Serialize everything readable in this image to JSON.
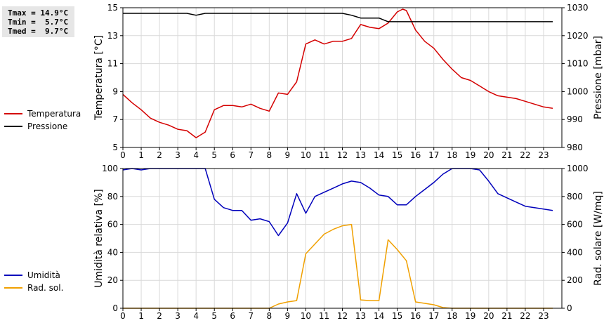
{
  "stats": {
    "tmax": "Tmax = 14.9°C",
    "tmin": "Tmin =  5.7°C",
    "tmed": "Tmed =  9.7°C"
  },
  "legends": {
    "top": [
      {
        "label": "Temperatura",
        "color": "#d40000"
      },
      {
        "label": "Pressione",
        "color": "#000000"
      }
    ],
    "bottom": [
      {
        "label": "Umidità",
        "color": "#0000bb"
      },
      {
        "label": "Rad. sol.",
        "color": "#f0a000"
      }
    ]
  },
  "chart_data": [
    {
      "type": "line",
      "x_range": [
        0,
        24
      ],
      "x_ticks": [
        "0",
        "1",
        "2",
        "3",
        "4",
        "5",
        "6",
        "7",
        "8",
        "9",
        "10",
        "11",
        "12",
        "13",
        "14",
        "15",
        "16",
        "17",
        "18",
        "19",
        "20",
        "21",
        "22",
        "23"
      ],
      "ylabel": "Temperatura [°C]",
      "ylim": [
        5,
        15
      ],
      "y_ticks": [
        "5",
        "7",
        "9",
        "11",
        "13",
        "15"
      ],
      "y2label": "Pressione [mbar]",
      "y2lim": [
        980,
        1030
      ],
      "y2_ticks": [
        "980",
        "990",
        "1000",
        "1010",
        "1020",
        "1030"
      ],
      "grid": true,
      "series": [
        {
          "name": "Temperatura",
          "axis": "left",
          "color": "#d40000",
          "x": [
            0,
            0.5,
            1,
            1.5,
            2,
            2.5,
            3,
            3.5,
            4,
            4.5,
            5,
            5.5,
            6,
            6.5,
            7,
            7.5,
            8,
            8.5,
            9,
            9.5,
            10,
            10.5,
            11,
            11.5,
            12,
            12.5,
            13,
            13.5,
            14,
            14.5,
            15,
            15.3,
            15.5,
            16,
            16.5,
            17,
            17.5,
            18,
            18.5,
            19,
            19.5,
            20,
            20.5,
            21,
            21.5,
            22,
            22.5,
            23,
            23.5
          ],
          "values": [
            8.8,
            8.2,
            7.7,
            7.1,
            6.8,
            6.6,
            6.3,
            6.2,
            5.7,
            6.1,
            7.7,
            8.0,
            8.0,
            7.9,
            8.1,
            7.8,
            7.6,
            8.9,
            8.8,
            9.7,
            12.4,
            12.7,
            12.4,
            12.6,
            12.6,
            12.8,
            13.8,
            13.6,
            13.5,
            13.9,
            14.7,
            14.9,
            14.8,
            13.4,
            12.6,
            12.1,
            11.3,
            10.6,
            10.0,
            9.8,
            9.4,
            9.0,
            8.7,
            8.6,
            8.5,
            8.3,
            8.1,
            7.9,
            7.8
          ]
        },
        {
          "name": "Pressione",
          "axis": "right",
          "color": "#000000",
          "x": [
            0,
            3.5,
            4,
            4.5,
            12,
            12.5,
            13,
            14,
            14.5,
            23.5
          ],
          "values": [
            1028,
            1028,
            1027.3,
            1028,
            1028,
            1027.3,
            1026.3,
            1026.3,
            1025,
            1025
          ]
        }
      ]
    },
    {
      "type": "line",
      "x_range": [
        0,
        24
      ],
      "x_ticks": [
        "0",
        "1",
        "2",
        "3",
        "4",
        "5",
        "6",
        "7",
        "8",
        "9",
        "10",
        "11",
        "12",
        "13",
        "14",
        "15",
        "16",
        "17",
        "18",
        "19",
        "20",
        "21",
        "22",
        "23"
      ],
      "ylabel": "Umidità relativa [%]",
      "ylim": [
        0,
        100
      ],
      "y_ticks": [
        "0",
        "20",
        "40",
        "60",
        "80",
        "100"
      ],
      "y2label": "Rad. solare [W/mq]",
      "y2lim": [
        0,
        1000
      ],
      "y2_ticks": [
        "0",
        "200",
        "400",
        "600",
        "800",
        "1000"
      ],
      "grid": true,
      "series": [
        {
          "name": "Umidità",
          "axis": "left",
          "color": "#0000bb",
          "x": [
            0,
            0.5,
            1,
            1.5,
            2,
            3,
            4,
            4.5,
            5,
            5.5,
            6,
            6.5,
            7,
            7.5,
            8,
            8.5,
            9,
            9.5,
            10,
            10.5,
            11,
            11.5,
            12,
            12.5,
            13,
            13.5,
            14,
            14.5,
            15,
            15.5,
            16,
            16.5,
            17,
            17.5,
            18,
            18.5,
            19,
            19.5,
            20,
            20.5,
            21,
            21.5,
            22,
            22.5,
            23,
            23.5
          ],
          "values": [
            99,
            100,
            99,
            100,
            100,
            100,
            100,
            100,
            78,
            72,
            70,
            70,
            63,
            64,
            62,
            52,
            61,
            82,
            68,
            80,
            83,
            86,
            89,
            91,
            90,
            86,
            81,
            80,
            74,
            74,
            80,
            85,
            90,
            96,
            100,
            100,
            100,
            99,
            91,
            82,
            79,
            76,
            73,
            72,
            71,
            70
          ]
        },
        {
          "name": "Rad. sol.",
          "axis": "right",
          "color": "#f0a000",
          "x": [
            0,
            8,
            8.5,
            9,
            9.5,
            10,
            10.5,
            11,
            11.5,
            12,
            12.5,
            13,
            13.5,
            14,
            14.5,
            15,
            15.5,
            16,
            16.5,
            17,
            17.5,
            18,
            23.5
          ],
          "values": [
            0,
            0,
            30,
            45,
            55,
            390,
            460,
            530,
            565,
            590,
            600,
            60,
            55,
            55,
            490,
            420,
            340,
            45,
            35,
            25,
            5,
            0,
            0
          ]
        }
      ]
    }
  ]
}
